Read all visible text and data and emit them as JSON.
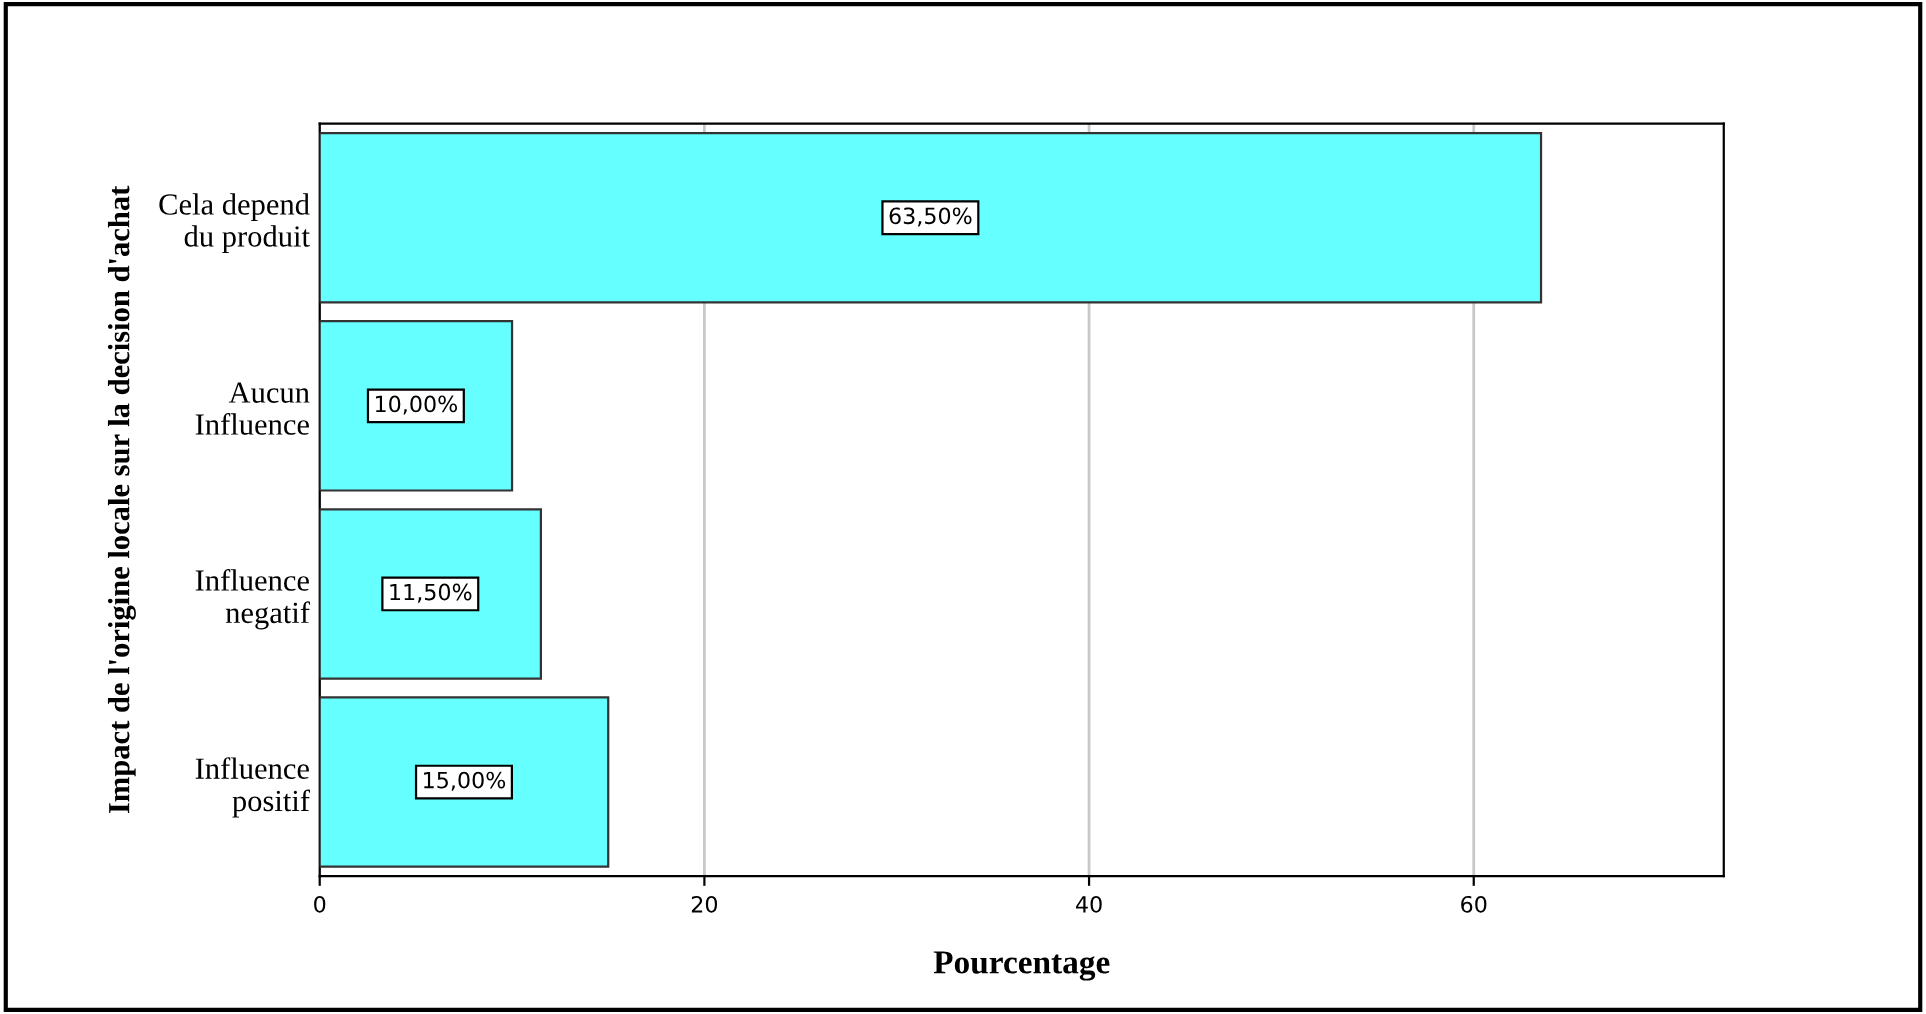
{
  "chart_data": {
    "type": "bar",
    "orientation": "horizontal",
    "xlabel": "Pourcentage",
    "ylabel": "Impact de l'origine locale sur la decision d'achat",
    "categories": [
      "Cela depend\ndu produit",
      "Aucun\nInfluence",
      "Influence\nnegatif",
      "Influence\npositif"
    ],
    "values": [
      63.5,
      10,
      11.5,
      15
    ],
    "value_labels": [
      "63,50%",
      "10,00%",
      "11,50%",
      "15,00%"
    ],
    "color": "#66ffff",
    "xlim": [
      0,
      73
    ],
    "xticks": [
      0,
      20,
      40,
      60
    ],
    "grid": "x"
  }
}
